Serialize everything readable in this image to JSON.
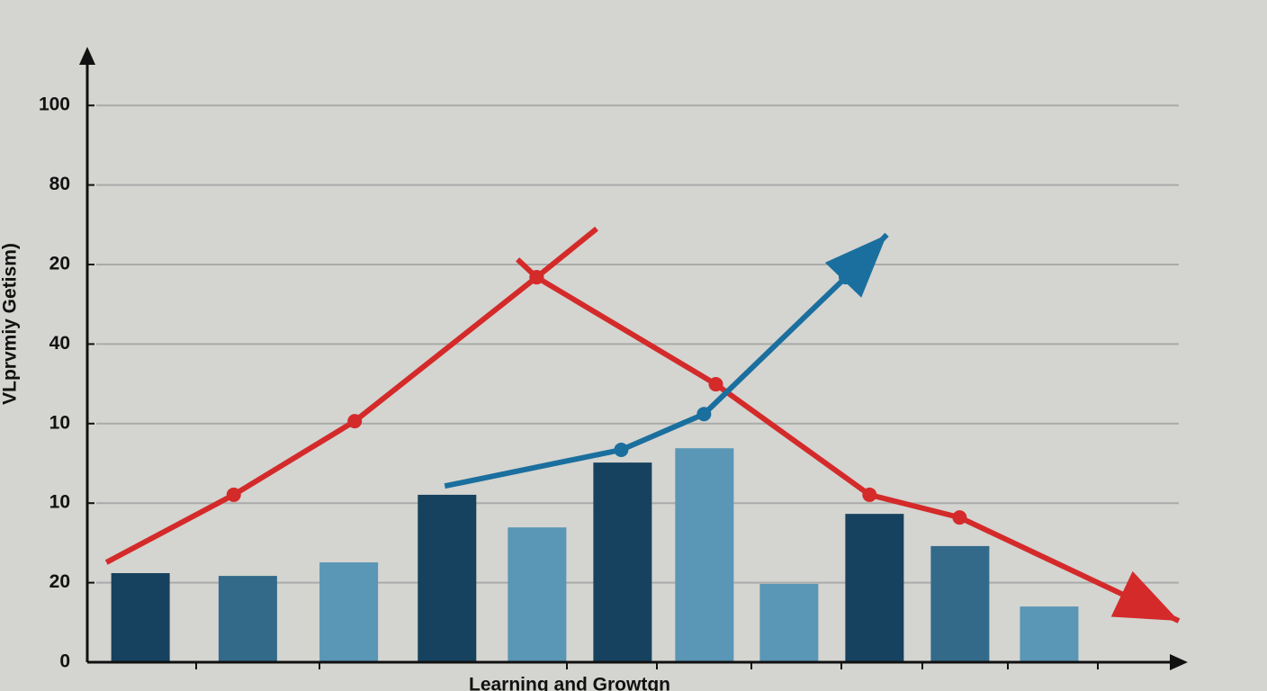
{
  "chart_data": {
    "type": "bar",
    "x_label": "Learning and Growtgn",
    "y_label": "VLprvmiy Getism)",
    "xlim": [
      0,
      12
    ],
    "ylim": [
      0,
      150
    ],
    "yticks": [
      0,
      20,
      {
        "value": 40,
        "label": "10"
      },
      {
        "value": 60,
        "label": "10"
      },
      {
        "value": 80,
        "label": "40"
      },
      {
        "value": 100,
        "label": "20"
      },
      {
        "value": 120,
        "label": "80"
      },
      {
        "value": 140,
        "label": "100"
      }
    ],
    "grid": true,
    "categories": [
      null,
      null,
      null,
      null,
      null,
      null,
      null,
      null,
      null,
      null,
      null
    ],
    "x": [
      0.58,
      1.76,
      2.87,
      3.95,
      4.94,
      5.88,
      6.78,
      7.71,
      8.65,
      9.59,
      10.57
    ],
    "values": [
      22.4,
      21.7,
      25.1,
      42.1,
      33.9,
      50.2,
      53.8,
      19.7,
      37.3,
      29.2,
      14.0
    ],
    "colors": [
      "#16425f",
      "#336a8a",
      "#5a96b5",
      "#16425f",
      "#5a96b5",
      "#16425f",
      "#5a96b5",
      "#5a96b5",
      "#16425f",
      "#336a8a",
      "#5a96b5"
    ],
    "lines": [
      {
        "color": "#d42a2a",
        "x": [
          0.21,
          1.61,
          2.94,
          4.94,
          5.6
        ],
        "values": [
          25.1,
          42.1,
          60.6,
          96.8,
          109.0
        ],
        "arrow": false
      },
      {
        "color": "#d42a2a",
        "x": [
          4.73,
          4.94,
          6.91,
          8.6,
          9.59,
          12.0
        ],
        "values": [
          101.3,
          96.8,
          69.9,
          42.1,
          36.4,
          10.4
        ],
        "arrow": true
      },
      {
        "color": "#1a6f9e",
        "x": [
          3.93,
          5.87,
          6.78,
          8.34,
          8.79
        ],
        "values": [
          44.3,
          53.4,
          62.4,
          96.8,
          107.5
        ],
        "arrow": true
      }
    ]
  }
}
